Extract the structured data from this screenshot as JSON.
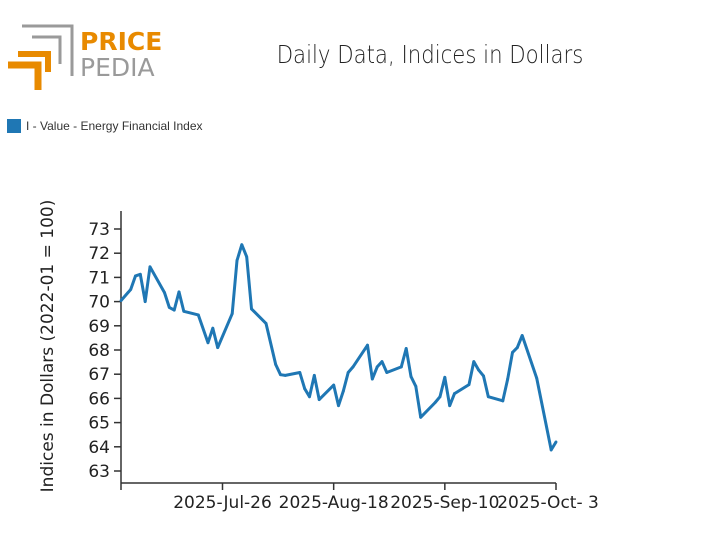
{
  "logo": {
    "line1": "PRICE",
    "line2": "PEDIA",
    "accent": "#e88a00",
    "gray": "#9a9a9a"
  },
  "chart_data": {
    "type": "line",
    "title": "Daily Data, Indices in Dollars",
    "xlabel": "",
    "ylabel": "Indices in Dollars (2022-01 = 100)",
    "legend_position": "top-left",
    "grid": false,
    "xlim": [
      "2025-07-05",
      "2025-10-03"
    ],
    "ylim": [
      62.5,
      73.8
    ],
    "yticks": [
      63,
      64,
      65,
      66,
      67,
      68,
      69,
      70,
      71,
      72,
      73
    ],
    "xticks": [
      {
        "date": "2025-07-26",
        "label": "2025-Jul-26"
      },
      {
        "date": "2025-08-18",
        "label": "2025-Aug-18"
      },
      {
        "date": "2025-09-10",
        "label": "2025-Sep-10"
      },
      {
        "date": "2025-10-03",
        "label": "2025-Oct- 3"
      }
    ],
    "series": [
      {
        "name": "I - Value - Energy Financial Index",
        "color": "#1f77b4",
        "x": [
          "2025-07-05",
          "2025-07-07",
          "2025-07-08",
          "2025-07-09",
          "2025-07-10",
          "2025-07-11",
          "2025-07-14",
          "2025-07-15",
          "2025-07-16",
          "2025-07-17",
          "2025-07-18",
          "2025-07-21",
          "2025-07-23",
          "2025-07-24",
          "2025-07-25",
          "2025-07-28",
          "2025-07-29",
          "2025-07-30",
          "2025-07-31",
          "2025-08-01",
          "2025-08-04",
          "2025-08-06",
          "2025-08-07",
          "2025-08-08",
          "2025-08-11",
          "2025-08-12",
          "2025-08-13",
          "2025-08-14",
          "2025-08-15",
          "2025-08-18",
          "2025-08-19",
          "2025-08-20",
          "2025-08-21",
          "2025-08-22",
          "2025-08-25",
          "2025-08-26",
          "2025-08-27",
          "2025-08-28",
          "2025-08-29",
          "2025-09-01",
          "2025-09-02",
          "2025-09-03",
          "2025-09-04",
          "2025-09-05",
          "2025-09-08",
          "2025-09-09",
          "2025-09-10",
          "2025-09-11",
          "2025-09-12",
          "2025-09-15",
          "2025-09-16",
          "2025-09-17",
          "2025-09-18",
          "2025-09-19",
          "2025-09-22",
          "2025-09-23",
          "2025-09-24",
          "2025-09-25",
          "2025-09-26",
          "2025-09-29",
          "2025-10-02",
          "2025-10-03"
        ],
        "values": [
          70.04,
          70.5,
          71.06,
          71.13,
          70.0,
          71.44,
          70.37,
          69.76,
          69.65,
          70.4,
          69.6,
          69.45,
          68.3,
          68.9,
          68.1,
          69.5,
          71.7,
          72.35,
          71.85,
          69.7,
          69.1,
          67.4,
          66.98,
          66.95,
          67.07,
          66.4,
          66.07,
          66.95,
          65.95,
          66.55,
          65.7,
          66.3,
          67.07,
          67.3,
          68.2,
          66.8,
          67.3,
          67.52,
          67.07,
          67.3,
          68.06,
          66.9,
          66.5,
          65.22,
          65.83,
          66.07,
          66.87,
          65.7,
          66.2,
          66.57,
          67.52,
          67.17,
          66.93,
          66.07,
          65.9,
          66.8,
          67.9,
          68.1,
          68.6,
          66.84,
          63.87,
          64.2
        ]
      }
    ]
  }
}
